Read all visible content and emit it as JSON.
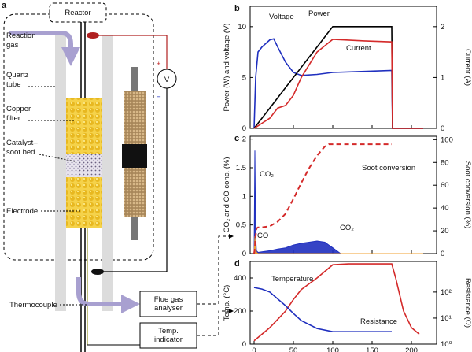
{
  "diagram": {
    "panel": "a",
    "reactor": "Reactor",
    "reaction_gas": [
      "Reaction",
      "gas"
    ],
    "quartz_tube": [
      "Quartz",
      "tube"
    ],
    "copper_filter": [
      "Copper",
      "filter"
    ],
    "catalyst_bed": [
      "Catalyst–",
      "soot bed"
    ],
    "electrode": "Electrode",
    "thermocouple": "Thermocouple",
    "flue_gas": [
      "Flue gas",
      "analyser"
    ],
    "temp_indicator": [
      "Temp.",
      "indicator"
    ],
    "voltmeter": "V",
    "plus": "+",
    "minus": "−"
  },
  "chart_data": [
    {
      "type": "line",
      "panel": "b",
      "ylabel": "Power (W) and voltage (V)",
      "y2label": "Current (A)",
      "x": [
        0,
        2,
        5,
        10,
        20,
        25,
        30,
        40,
        50,
        60,
        80,
        100,
        140,
        175,
        176,
        215
      ],
      "xlim": [
        -5,
        232
      ],
      "ylim": [
        0,
        12
      ],
      "yticks": [
        0,
        5,
        10
      ],
      "y2lim": [
        0,
        2.4
      ],
      "y2ticks": [
        0,
        1,
        2
      ],
      "series": [
        {
          "name": "Voltage",
          "color": "#1f2fbf",
          "values": [
            0,
            5,
            7.5,
            8,
            8.7,
            8.8,
            8,
            6.5,
            5.5,
            5.2,
            5.3,
            5.5,
            5.6,
            5.7,
            0,
            0
          ]
        },
        {
          "name": "Power",
          "color": "#000000",
          "values": [
            0,
            0.2,
            0.5,
            1,
            2,
            2.5,
            3,
            4,
            5,
            6,
            8,
            10,
            10,
            10,
            0,
            0
          ]
        },
        {
          "name": "Current",
          "color": "#d42a2a",
          "axis": "y2",
          "values": [
            0,
            0.02,
            0.05,
            0.1,
            0.2,
            0.3,
            0.4,
            0.45,
            0.65,
            1.0,
            1.5,
            1.75,
            1.72,
            1.7,
            0,
            0
          ]
        }
      ]
    },
    {
      "type": "line",
      "panel": "c",
      "ylabel": "CO₂ and CO conc. (%)",
      "y2label": "Soot conversion (%)",
      "x": [
        0,
        1,
        2,
        3,
        5,
        10,
        20,
        30,
        40,
        50,
        60,
        70,
        80,
        90,
        95,
        100,
        110,
        175,
        215
      ],
      "xlim": [
        -5,
        232
      ],
      "ylim": [
        0,
        2.05
      ],
      "yticks": [
        0,
        0.5,
        1,
        1.5,
        2
      ],
      "y2lim": [
        0,
        103
      ],
      "y2ticks": [
        0,
        20,
        40,
        60,
        80,
        100
      ],
      "series": [
        {
          "name": "CO₂",
          "color": "#1f2fbf",
          "area": true,
          "values": [
            0,
            1.8,
            0.3,
            0.05,
            0.02,
            0.03,
            0.05,
            0.08,
            0.1,
            0.15,
            0.18,
            0.2,
            0.22,
            0.2,
            0.15,
            0.1,
            0,
            0,
            0
          ]
        },
        {
          "name": "CO",
          "color": "#f0a030",
          "area": true,
          "values": [
            0,
            0.3,
            0.1,
            0.02,
            0,
            0,
            0,
            0,
            0,
            0,
            0,
            0,
            0,
            0,
            0,
            0,
            0,
            0,
            0
          ]
        },
        {
          "name": "Soot conversion",
          "color": "#d42a2a",
          "dash": true,
          "axis": "y2",
          "values": [
            0,
            5,
            15,
            22,
            23,
            23,
            24,
            28,
            35,
            48,
            62,
            75,
            86,
            94,
            96,
            96,
            96,
            96,
            null
          ]
        }
      ]
    },
    {
      "type": "line",
      "panel": "d",
      "xlabel": "Time (min)",
      "ylabel": "Temp. (°C)",
      "y2label": "Resistance (Ω)",
      "x": [
        0,
        10,
        20,
        40,
        50,
        60,
        80,
        100,
        120,
        175,
        180,
        190,
        200,
        210
      ],
      "xlim": [
        -5,
        232
      ],
      "xticks": [
        0,
        50,
        100,
        150,
        200
      ],
      "ylim": [
        0,
        500
      ],
      "yticks": [
        0,
        200,
        400
      ],
      "y2lim": [
        1,
        1500
      ],
      "y2scale": "log",
      "y2ticks": [
        {
          "value": 1,
          "label": "10⁰"
        },
        {
          "value": 10,
          "label": "10¹"
        },
        {
          "value": 100,
          "label": "10²"
        }
      ],
      "series": [
        {
          "name": "Temperature",
          "color": "#d42a2a",
          "values": [
            20,
            60,
            100,
            200,
            270,
            330,
            400,
            480,
            485,
            485,
            400,
            200,
            100,
            60
          ]
        },
        {
          "name": "Resistance",
          "color": "#1f2fbf",
          "axis": "y2",
          "values": [
            150,
            130,
            100,
            30,
            15,
            8,
            4,
            3,
            3,
            3,
            null,
            null,
            null,
            null
          ]
        }
      ]
    }
  ]
}
